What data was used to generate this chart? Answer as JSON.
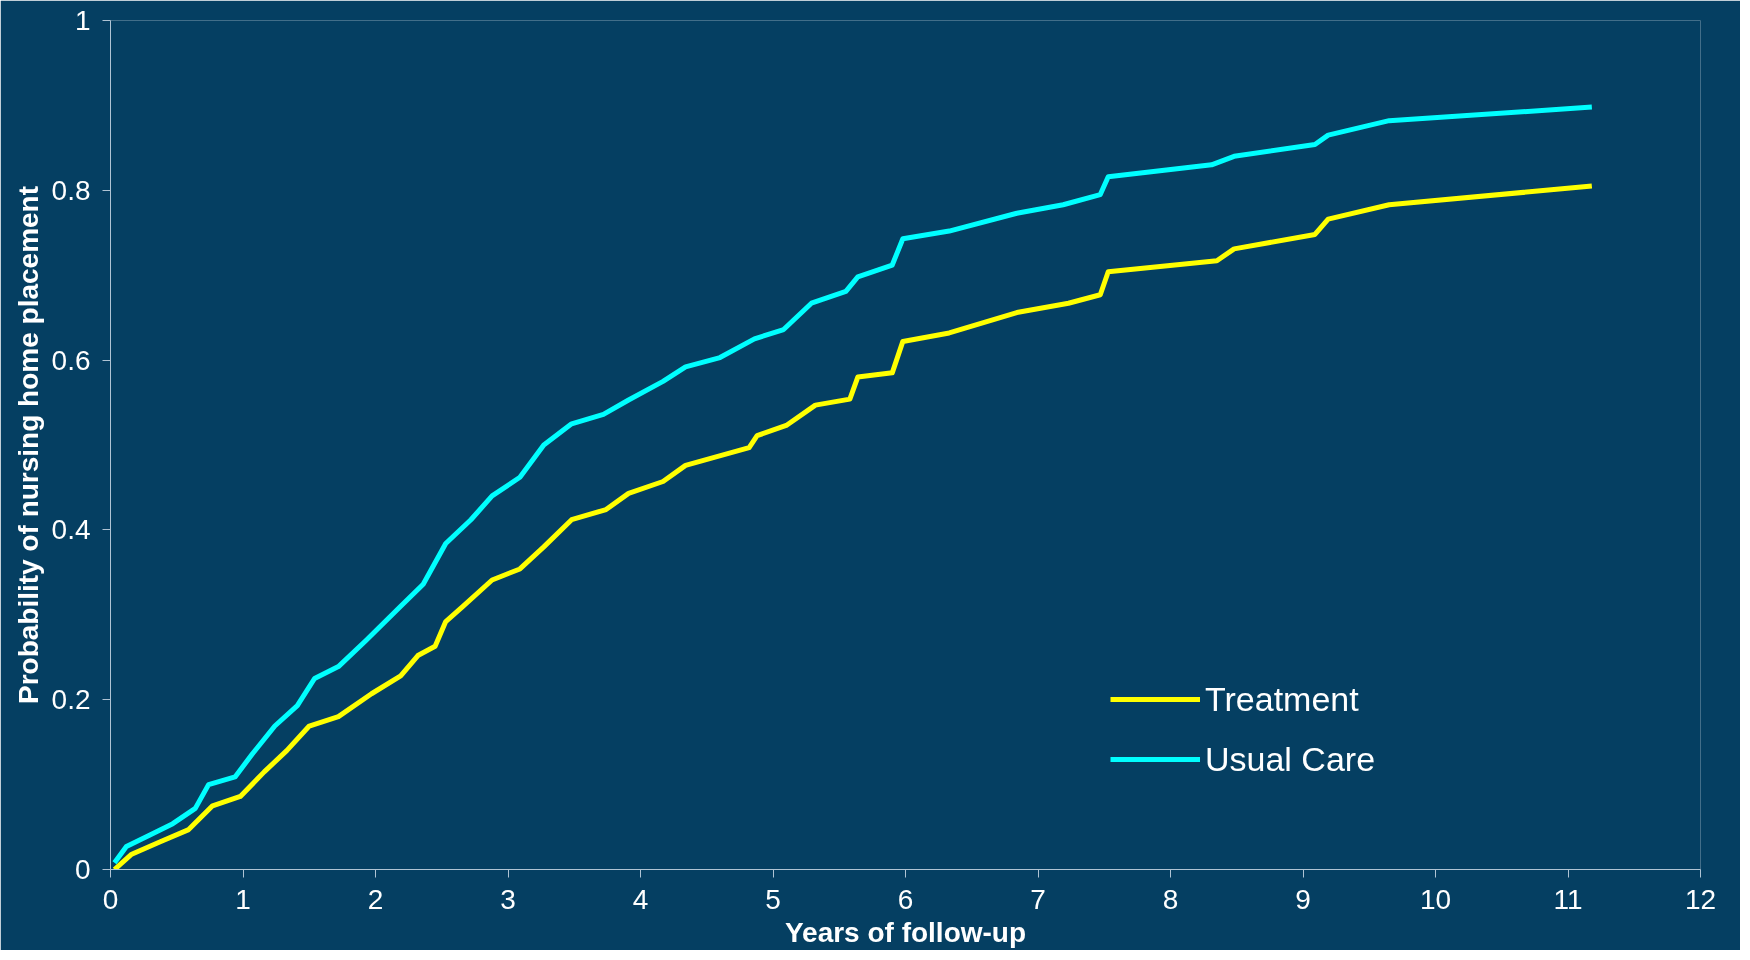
{
  "chart_data": {
    "type": "line",
    "xlabel": "Years of follow-up",
    "ylabel": "Probability of nursing home placement",
    "xlim": [
      0,
      12
    ],
    "ylim": [
      0,
      1
    ],
    "xticks": [
      0,
      1,
      2,
      3,
      4,
      5,
      6,
      7,
      8,
      9,
      10,
      11,
      12
    ],
    "yticks": [
      0,
      {
        "value": 0.2,
        "label": "0.2"
      },
      {
        "value": 0.4,
        "label": "0.4"
      },
      {
        "value": 0.6,
        "label": "0.6"
      },
      {
        "value": 0.8,
        "label": "0.8"
      },
      1
    ],
    "grid": false,
    "legend": "right",
    "marker": "none",
    "line_style": "solid",
    "series": [
      {
        "name": "Treatment",
        "color": "#ffff00",
        "x": [
          0.03,
          0.16,
          0.38,
          0.59,
          0.77,
          0.98,
          1.16,
          1.33,
          1.5,
          1.72,
          1.97,
          2.19,
          2.32,
          2.45,
          2.53,
          2.66,
          2.88,
          3.09,
          3.27,
          3.48,
          3.74,
          3.91,
          4.17,
          4.34,
          4.82,
          4.88,
          5.1,
          5.32,
          5.58,
          5.64,
          5.9,
          5.98,
          6.33,
          6.84,
          7.23,
          7.47,
          7.53,
          8.35,
          8.48,
          9.09,
          9.19,
          9.65,
          11.18
        ],
        "values": [
          0,
          0.018,
          0.033,
          0.047,
          0.075,
          0.086,
          0.115,
          0.14,
          0.169,
          0.18,
          0.207,
          0.228,
          0.252,
          0.263,
          0.292,
          0.31,
          0.341,
          0.354,
          0.38,
          0.412,
          0.424,
          0.443,
          0.457,
          0.476,
          0.497,
          0.511,
          0.523,
          0.547,
          0.554,
          0.58,
          0.585,
          0.622,
          0.632,
          0.656,
          0.667,
          0.677,
          0.704,
          0.717,
          0.731,
          0.748,
          0.766,
          0.783,
          0.805
        ]
      },
      {
        "name": "Usual Care",
        "color": "#00ffff",
        "x": [
          0.03,
          0.12,
          0.29,
          0.47,
          0.64,
          0.74,
          0.94,
          1.07,
          1.24,
          1.41,
          1.54,
          1.72,
          1.93,
          2.19,
          2.36,
          2.53,
          2.72,
          2.88,
          3.09,
          3.27,
          3.48,
          3.72,
          3.91,
          4.17,
          4.34,
          4.6,
          4.86,
          5.08,
          5.29,
          5.55,
          5.64,
          5.9,
          5.98,
          6.33,
          6.84,
          7.19,
          7.47,
          7.53,
          8.31,
          8.48,
          9.09,
          9.19,
          9.65,
          11.18
        ],
        "values": [
          0.008,
          0.027,
          0.04,
          0.054,
          0.072,
          0.1,
          0.109,
          0.136,
          0.169,
          0.193,
          0.225,
          0.239,
          0.27,
          0.31,
          0.336,
          0.384,
          0.412,
          0.44,
          0.462,
          0.5,
          0.525,
          0.536,
          0.553,
          0.575,
          0.592,
          0.603,
          0.625,
          0.636,
          0.667,
          0.681,
          0.698,
          0.712,
          0.743,
          0.752,
          0.773,
          0.783,
          0.795,
          0.816,
          0.83,
          0.84,
          0.854,
          0.865,
          0.882,
          0.898
        ]
      }
    ]
  }
}
